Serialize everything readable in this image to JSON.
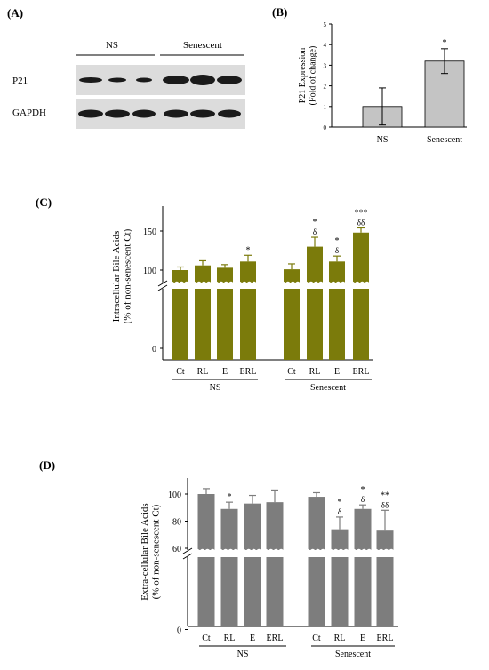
{
  "panels": {
    "a": {
      "label": "(A)",
      "groups": [
        "NS",
        "Senescent"
      ],
      "rows": [
        "P21",
        "GAPDH"
      ]
    },
    "b": {
      "label": "(B)"
    },
    "c": {
      "label": "(C)"
    },
    "d": {
      "label": "(D)"
    }
  },
  "colors": {
    "b_bar": "#c4c4c4",
    "c_bar": "#7b7b0b",
    "d_bar": "#7d7d7d",
    "blot_bg": "#dcdcdc",
    "band": "#1a1a1a"
  },
  "chart_data": [
    {
      "panel": "B",
      "type": "bar",
      "categories": [
        "NS",
        "Senescent"
      ],
      "values": [
        1.0,
        3.2
      ],
      "errors": [
        0.9,
        0.6
      ],
      "annotations": [
        "",
        "*"
      ],
      "ylabel": "P21 Expression\n(Fold of change)",
      "ylim": [
        0,
        5
      ],
      "yticks": [
        0,
        1,
        2,
        3,
        4,
        5
      ]
    },
    {
      "panel": "C",
      "type": "bar",
      "categories": [
        "Ct",
        "RL",
        "E",
        "ERL",
        "Ct",
        "RL",
        "E",
        "ERL"
      ],
      "groups": [
        {
          "name": "NS",
          "count": 4
        },
        {
          "name": "Senescent",
          "count": 4
        }
      ],
      "values": [
        100,
        106,
        103,
        111,
        101,
        130,
        111,
        148
      ],
      "errors": [
        4,
        6,
        4,
        8,
        7,
        12,
        7,
        6
      ],
      "annotations": [
        [
          "",
          ""
        ],
        [
          "",
          ""
        ],
        [
          "",
          ""
        ],
        [
          "*",
          ""
        ],
        [
          "",
          ""
        ],
        [
          "*",
          "δ"
        ],
        [
          "*",
          "δ"
        ],
        [
          "***",
          "δδ"
        ]
      ],
      "ylabel": "Intracellular Bile Acids\n(% of non-senescent Ct)",
      "yticks": [
        0,
        100,
        150
      ],
      "axis_break": true
    },
    {
      "panel": "D",
      "type": "bar",
      "categories": [
        "Ct",
        "RL",
        "E",
        "ERL",
        "Ct",
        "RL",
        "E",
        "ERL"
      ],
      "groups": [
        {
          "name": "NS",
          "count": 4
        },
        {
          "name": "Senescent",
          "count": 4
        }
      ],
      "values": [
        100,
        89,
        93,
        94,
        98,
        74,
        89,
        73
      ],
      "errors": [
        4,
        5,
        6,
        9,
        3,
        9,
        3,
        15
      ],
      "annotations": [
        [
          "",
          ""
        ],
        [
          "*",
          ""
        ],
        [
          "",
          ""
        ],
        [
          "",
          ""
        ],
        [
          "",
          ""
        ],
        [
          "*",
          "δ"
        ],
        [
          "*",
          "δ"
        ],
        [
          "**",
          "δδ"
        ]
      ],
      "ylabel": "Extra-cellular Bile Acids\n(% of non-senescent Ct)",
      "yticks": [
        0,
        60,
        80,
        100
      ],
      "axis_break": true
    }
  ]
}
